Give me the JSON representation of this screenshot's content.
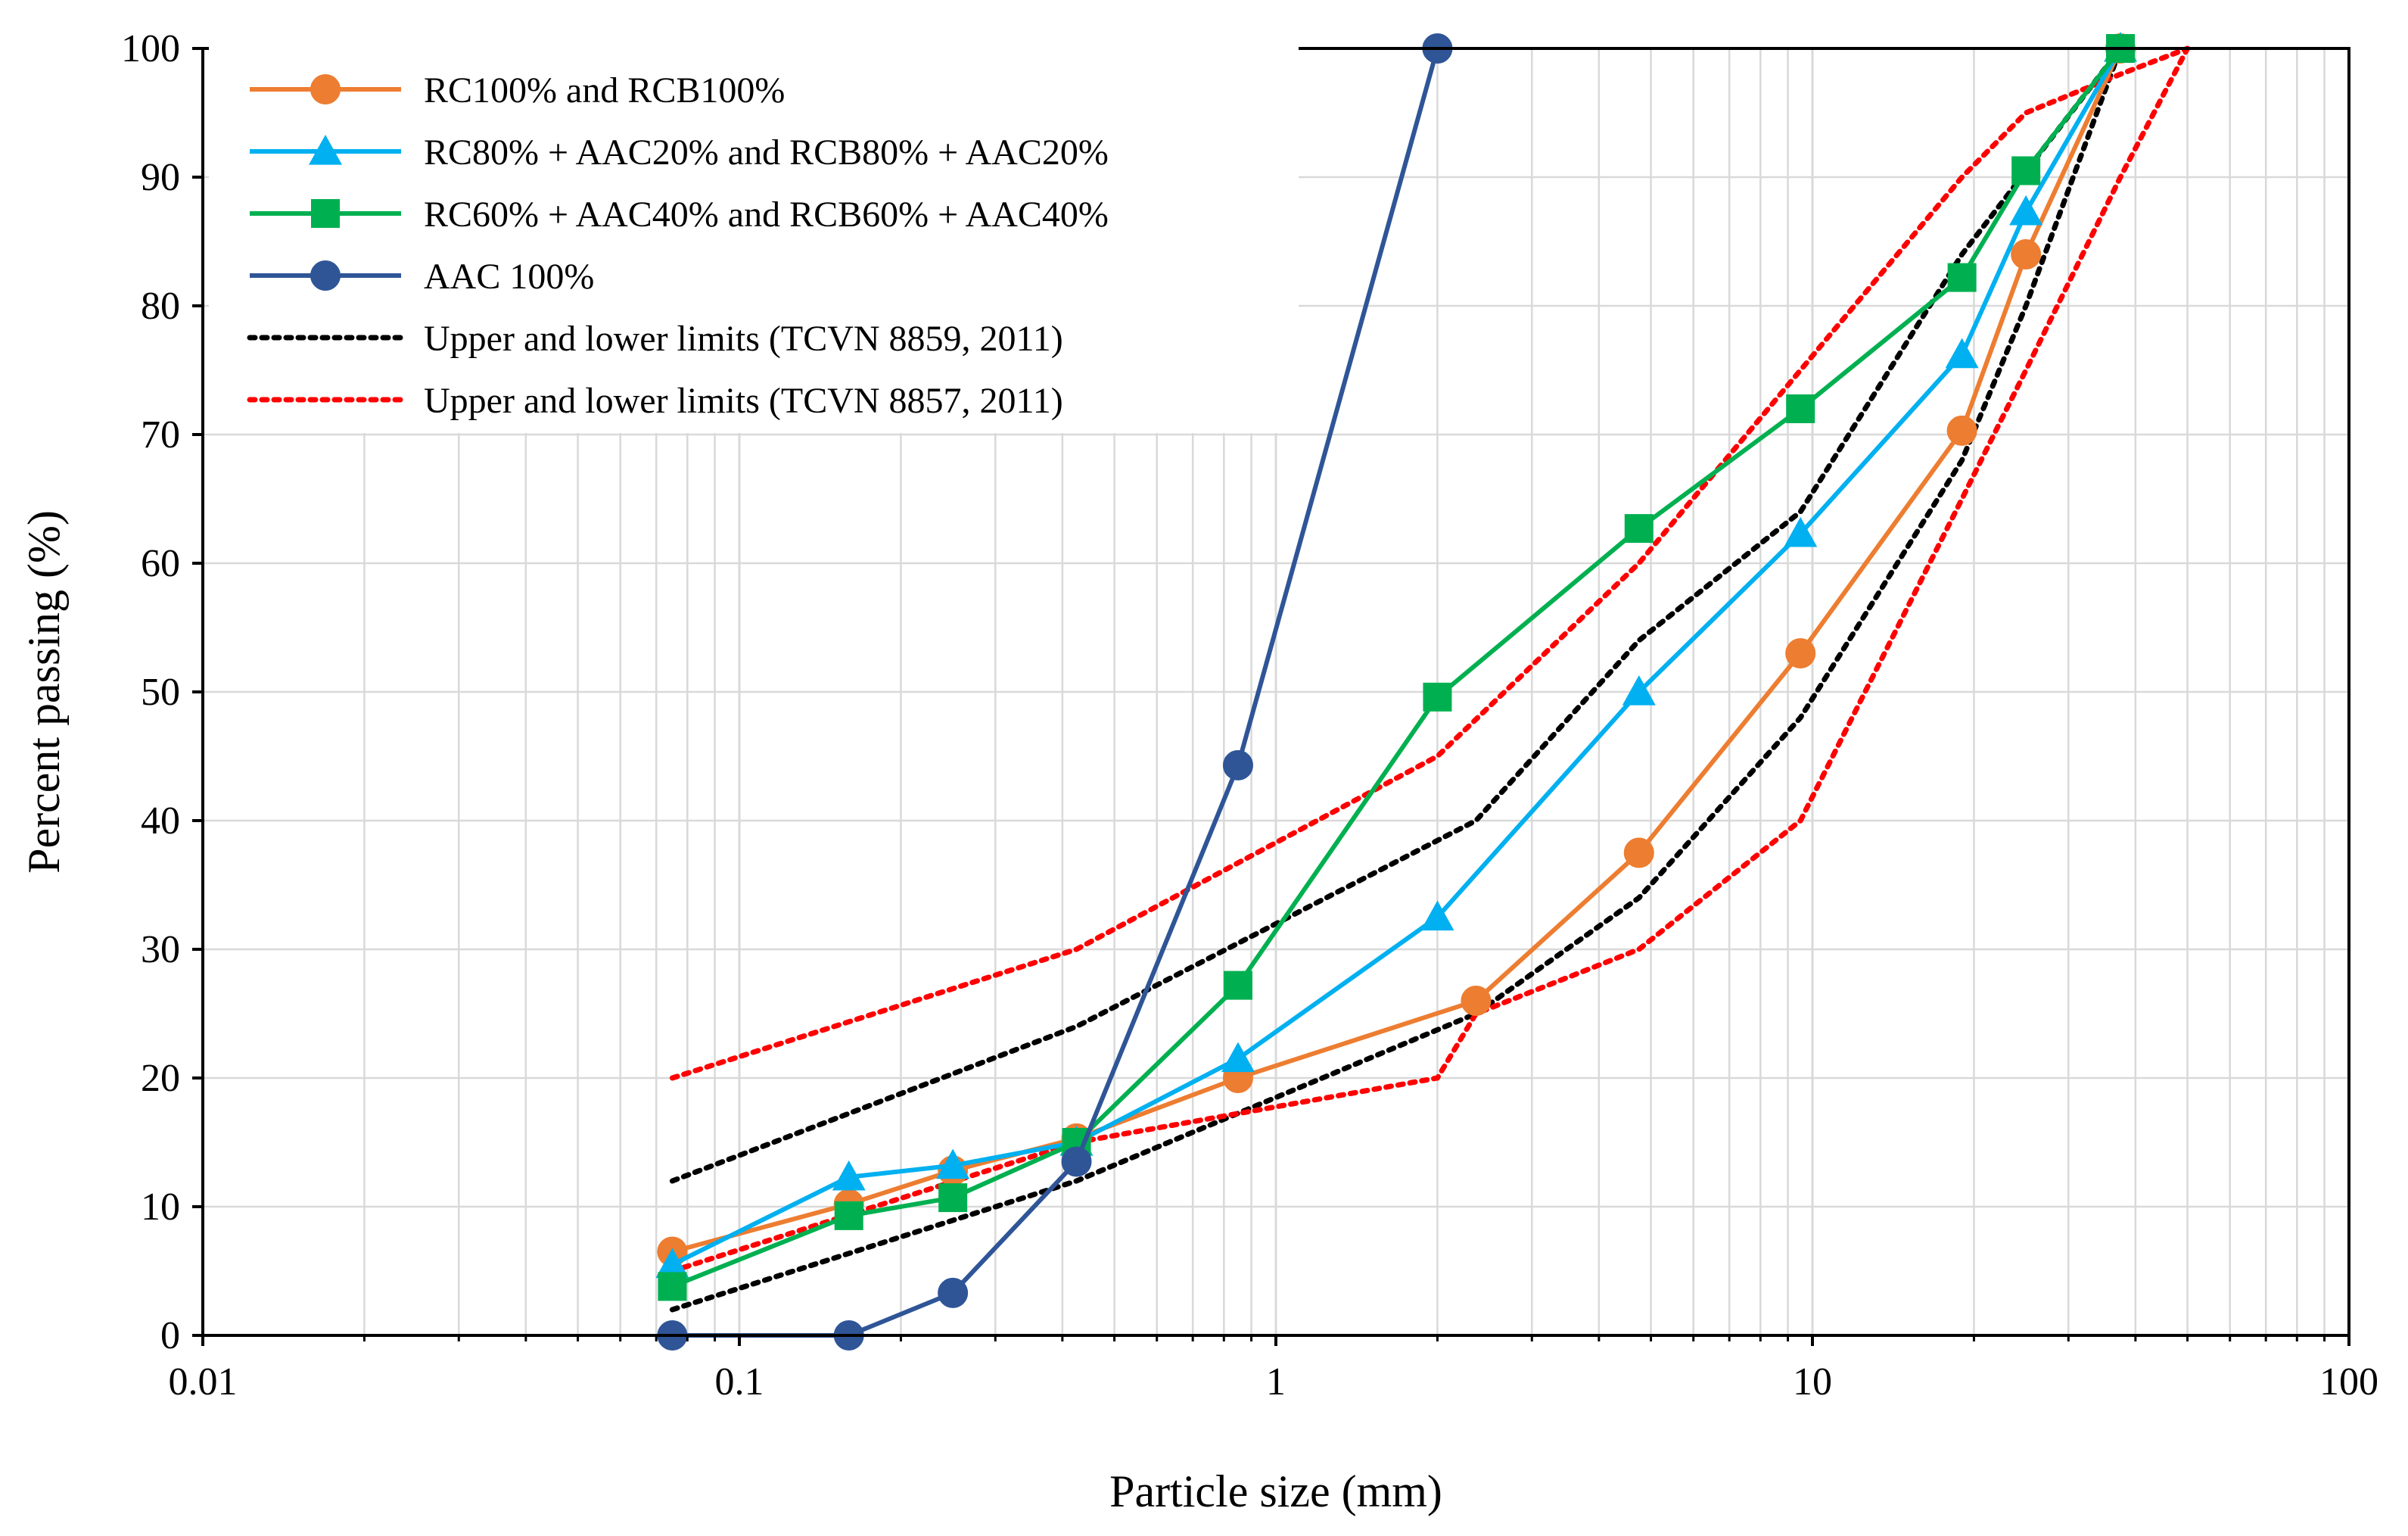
{
  "chart_data": {
    "type": "line",
    "title": "",
    "xlabel": "Particle size (mm)",
    "ylabel": "Percent passing (%)",
    "x_scale": "log",
    "xlim": [
      0.01,
      100
    ],
    "ylim": [
      0,
      100
    ],
    "x_ticks": [
      0.01,
      0.1,
      1,
      10,
      100
    ],
    "x_tick_labels": [
      "0.01",
      "0.1",
      "1",
      "10",
      "100"
    ],
    "y_ticks": [
      0,
      10,
      20,
      30,
      40,
      50,
      60,
      70,
      80,
      90,
      100
    ],
    "y_tick_labels": [
      "0",
      "10",
      "20",
      "30",
      "40",
      "50",
      "60",
      "70",
      "80",
      "90",
      "100"
    ],
    "grid": true,
    "legend_position": "top-left",
    "series": [
      {
        "name": "RC100% and RCB100%",
        "color": "#ED7D31",
        "marker": "circle",
        "line": "solid",
        "x": [
          0.075,
          0.16,
          0.25,
          0.425,
          0.85,
          2.36,
          4.75,
          9.5,
          19,
          25,
          37.5
        ],
        "y": [
          6.5,
          10.2,
          12.8,
          15.3,
          20.0,
          26.0,
          37.5,
          53.0,
          70.3,
          84.0,
          100
        ]
      },
      {
        "name": "RC80% + AAC20% and RCB80% + AAC20%",
        "color": "#00B0F0",
        "marker": "triangle",
        "line": "solid",
        "x": [
          0.075,
          0.16,
          0.25,
          0.425,
          0.85,
          2,
          4.75,
          9.5,
          19,
          25,
          37.5
        ],
        "y": [
          5.5,
          12.3,
          13.2,
          15.0,
          21.5,
          32.5,
          50.0,
          62.3,
          76.2,
          87.3,
          100
        ]
      },
      {
        "name": "RC60% + AAC40% and RCB60% + AAC40%",
        "color": "#00B050",
        "marker": "square",
        "line": "solid",
        "x": [
          0.075,
          0.16,
          0.25,
          0.425,
          0.85,
          2,
          4.75,
          9.5,
          19,
          25,
          37.5
        ],
        "y": [
          3.8,
          9.3,
          10.7,
          15.0,
          27.2,
          49.6,
          62.7,
          72.0,
          82.2,
          90.5,
          100
        ]
      },
      {
        "name": "AAC 100%",
        "color": "#2F5597",
        "marker": "circle",
        "line": "solid",
        "x": [
          0.075,
          0.16,
          0.25,
          0.425,
          0.85,
          2
        ],
        "y": [
          0,
          0,
          3.3,
          13.5,
          44.3,
          100
        ]
      },
      {
        "name": "Upper and lower limits (TCVN 8859, 2011)",
        "color": "#000000",
        "marker": "none",
        "line": "dotted",
        "segments": [
          {
            "x": [
              0.075,
              0.425,
              2.36,
              4.75,
              9.5,
              19,
              37.5
            ],
            "y": [
              12,
              24,
              40,
              54,
              64,
              84,
              100
            ]
          },
          {
            "x": [
              0.075,
              0.425,
              2.36,
              4.75,
              9.5,
              19,
              25,
              37.5
            ],
            "y": [
              2,
              12,
              25,
              34,
              48,
              68,
              80,
              100
            ]
          }
        ]
      },
      {
        "name": "Upper and lower limits (TCVN 8857, 2011)",
        "color": "#FF0000",
        "marker": "none",
        "line": "dotted",
        "segments": [
          {
            "x": [
              0.075,
              0.425,
              2,
              4.75,
              9.5,
              19,
              25,
              37.5,
              50
            ],
            "y": [
              20,
              30,
              45,
              60,
              75,
              90,
              95,
              98,
              100
            ]
          },
          {
            "x": [
              0.075,
              0.425,
              2,
              2.36,
              4.75,
              9.5,
              19,
              25,
              37.5,
              50
            ],
            "y": [
              5,
              15,
              20,
              25,
              30,
              40,
              65,
              75,
              90,
              100
            ]
          }
        ]
      }
    ]
  }
}
